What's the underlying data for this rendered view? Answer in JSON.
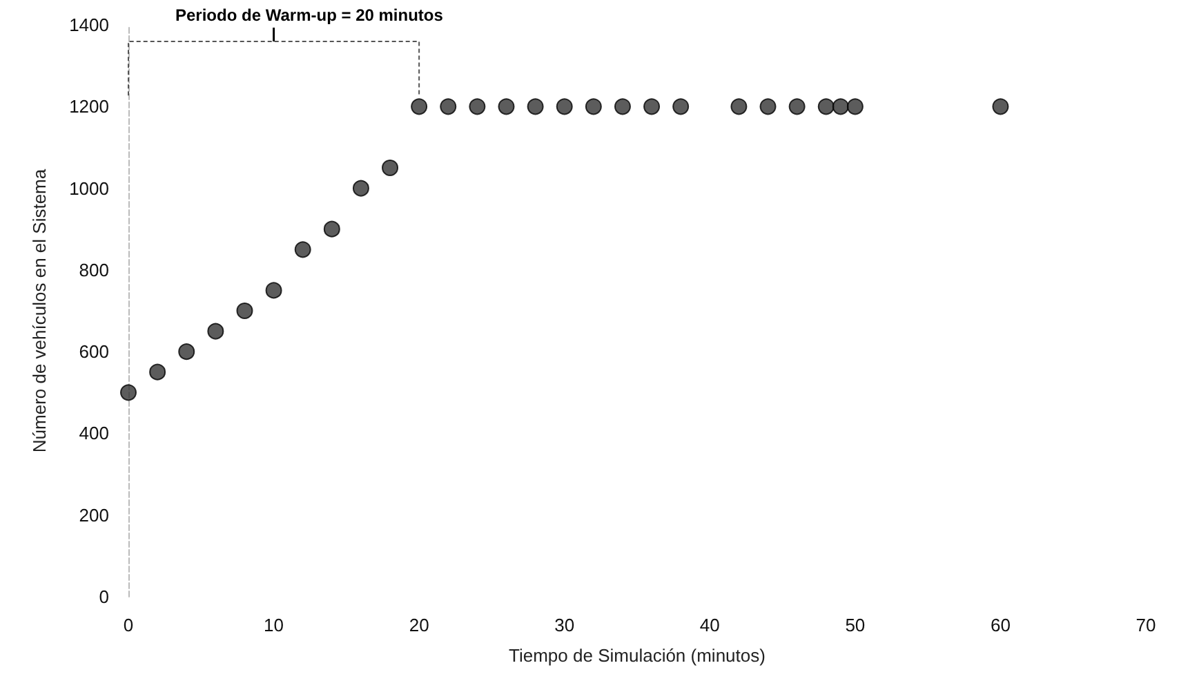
{
  "chart_data": {
    "type": "scatter",
    "xlabel": "Tiempo de Simulación (minutos)",
    "ylabel": "Número de vehículos en el Sistema",
    "annotations": [
      "Periodo de Warm-up = 20 minutos"
    ],
    "x": [
      0,
      2,
      4,
      6,
      8,
      10,
      12,
      14,
      16,
      18,
      20,
      22,
      24,
      26,
      28,
      30,
      32,
      34,
      36,
      38,
      42,
      44,
      46,
      48,
      49,
      50,
      60
    ],
    "series": [
      {
        "color": "#333333",
        "values": [
          500,
          550,
          600,
          650,
          700,
          750,
          850,
          900,
          1000,
          1050,
          1200,
          1200,
          1200,
          1200,
          1200,
          1200,
          1200,
          1200,
          1200,
          1200,
          1200,
          1200,
          1200,
          1200,
          1200,
          1200,
          1200
        ]
      }
    ],
    "xlim": [
      0,
      70
    ],
    "xticks": [
      0,
      10,
      20,
      30,
      40,
      50,
      60,
      70
    ],
    "ylim": [
      0,
      1400
    ],
    "yticks": [
      0,
      200,
      400,
      600,
      800,
      1000,
      1200,
      1400
    ],
    "grid": false,
    "marker": "circle"
  }
}
